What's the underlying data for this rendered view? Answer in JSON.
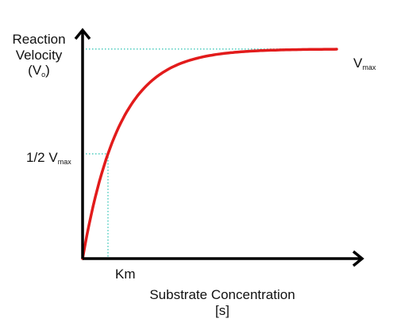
{
  "chart_data": {
    "type": "line",
    "title": "",
    "ylabel_lines": [
      "Reaction",
      "Velocity"
    ],
    "ylabel_symbol": {
      "base": "(V",
      "sub": "o",
      "close": ")"
    },
    "xlabel_lines": [
      "Substrate Concentration",
      "[s]"
    ],
    "vmax_label": {
      "base": "V",
      "sub": "max"
    },
    "half_vmax_label": {
      "base": "1/2 V",
      "sub": "max"
    },
    "km_label": "Km",
    "vmax": 1,
    "km": 1,
    "xlim": [
      0,
      11
    ],
    "ylim": [
      0,
      1.09
    ],
    "curve_x_max": 10.0,
    "curve_color": "#e21b1b",
    "guide_color": "#3cc7b8",
    "axis_color": "#000000"
  }
}
